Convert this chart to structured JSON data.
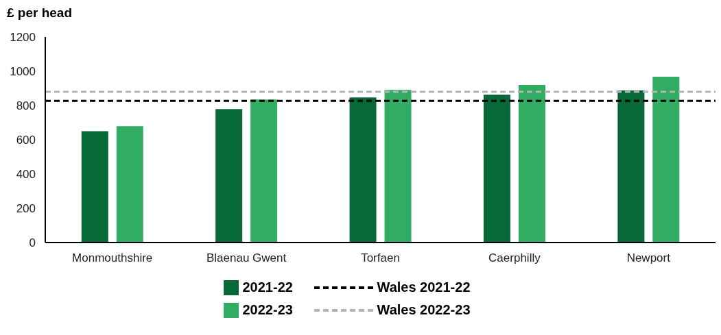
{
  "chart_data": {
    "type": "bar",
    "ylabel": "£ per head",
    "categories": [
      "Monmouthshire",
      "Blaenau Gwent",
      "Torfaen",
      "Caerphilly",
      "Newport"
    ],
    "series": [
      {
        "name": "2021-22",
        "color": "#066937",
        "values": [
          650,
          779,
          847,
          863,
          888
        ]
      },
      {
        "name": "2022-23",
        "color": "#30ad62",
        "values": [
          679,
          835,
          891,
          920,
          968
        ]
      }
    ],
    "ylim": [
      0,
      1200
    ],
    "yticks": [
      0,
      200,
      400,
      600,
      800,
      1000,
      1200
    ],
    "grid": false,
    "legend": "bottom",
    "ref_lines": [
      {
        "axis": "y",
        "value": 827,
        "label": "Wales 2021-22",
        "color": "#000000",
        "line_style": "dashed"
      },
      {
        "axis": "y",
        "value": 880,
        "label": "Wales 2022-23",
        "color": "#b3b3b3",
        "line_style": "dashed"
      }
    ]
  }
}
